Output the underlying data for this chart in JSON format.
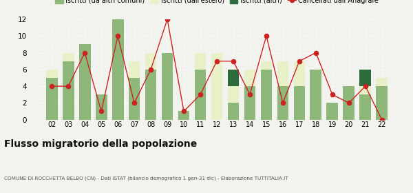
{
  "years": [
    "02",
    "03",
    "04",
    "05",
    "06",
    "07",
    "08",
    "09",
    "10",
    "11",
    "12",
    "13",
    "14",
    "15",
    "16",
    "17",
    "18",
    "19",
    "20",
    "21",
    "22"
  ],
  "iscritti_comuni": [
    5,
    7,
    9,
    3,
    12,
    5,
    6,
    8,
    1,
    6,
    0,
    2,
    4,
    6,
    4,
    4,
    6,
    2,
    4,
    3,
    4
  ],
  "iscritti_estero": [
    1,
    1,
    0,
    0,
    0,
    2,
    2,
    0,
    0,
    2,
    8,
    2,
    2,
    1,
    3,
    3,
    0,
    0,
    0,
    1,
    1
  ],
  "iscritti_altri": [
    0,
    0,
    0,
    0,
    0,
    0,
    0,
    0,
    0,
    0,
    0,
    2,
    0,
    0,
    0,
    0,
    0,
    0,
    0,
    2,
    0
  ],
  "cancellati": [
    4,
    4,
    8,
    1,
    10,
    2,
    6,
    12,
    1,
    3,
    7,
    7,
    3,
    10,
    2,
    7,
    8,
    3,
    2,
    4,
    0
  ],
  "color_comuni": "#8db87a",
  "color_estero": "#e8f0c8",
  "color_altri": "#2d6b3c",
  "color_cancellati": "#cc2222",
  "ylim": [
    0,
    12
  ],
  "yticks": [
    0,
    2,
    4,
    6,
    8,
    10,
    12
  ],
  "title": "Flusso migratorio della popolazione",
  "subtitle": "COMUNE DI ROCCHETTA BELBO (CN) - Dati ISTAT (bilancio demografico 1 gen-31 dic) - Elaborazione TUTTITALIA.IT",
  "legend_labels": [
    "Iscritti (da altri comuni)",
    "Iscritti (dall'estero)",
    "Iscritti (altri)",
    "Cancellati dall’Anagrafe"
  ],
  "bg_color": "#f2f2ee"
}
